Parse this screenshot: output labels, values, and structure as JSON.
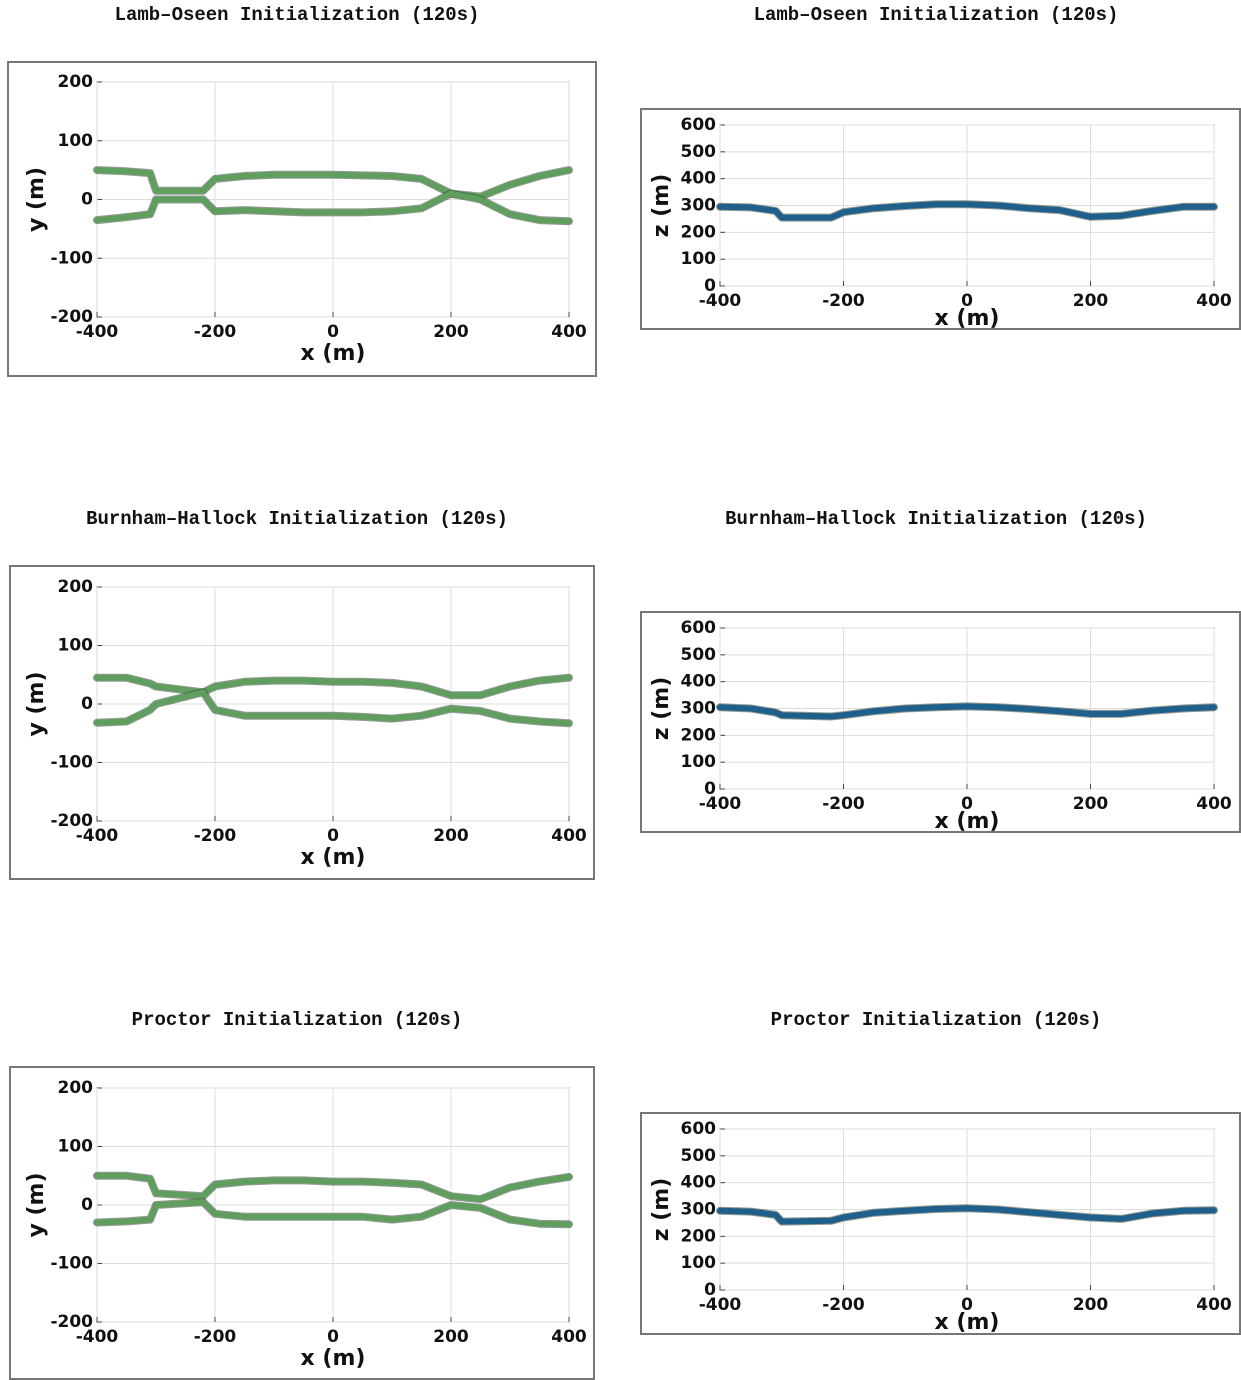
{
  "chart_data": [
    {
      "type": "line",
      "title": "Lamb–Oseen Initialization (120s)",
      "x_label": "x (m)",
      "y_label": "y (m)",
      "x": [
        -400,
        -350,
        -310,
        -300,
        -220,
        -200,
        -150,
        -100,
        -50,
        0,
        50,
        100,
        150,
        200,
        250,
        300,
        350,
        400
      ],
      "xlim": [
        -400,
        400
      ],
      "ylim": [
        -200,
        200
      ],
      "xticks": [
        -400,
        -200,
        0,
        200,
        400
      ],
      "yticks": [
        -200,
        -100,
        0,
        100,
        200
      ],
      "grid": true,
      "series": [
        {
          "color": "#5f9e5f",
          "values": [
            50,
            48,
            45,
            15,
            15,
            35,
            40,
            42,
            42,
            42,
            41,
            40,
            35,
            10,
            5,
            25,
            40,
            50
          ]
        },
        {
          "color": "#5f9e5f",
          "values": [
            -35,
            -30,
            -25,
            0,
            0,
            -20,
            -18,
            -20,
            -22,
            -22,
            -22,
            -20,
            -15,
            10,
            0,
            -25,
            -35,
            -37
          ]
        }
      ]
    },
    {
      "type": "line",
      "title": "Lamb–Oseen Initialization (120s)",
      "x_label": "x (m)",
      "y_label": "z (m)",
      "x": [
        -400,
        -350,
        -310,
        -300,
        -220,
        -200,
        -150,
        -100,
        -50,
        0,
        50,
        100,
        150,
        200,
        250,
        300,
        350,
        400
      ],
      "xlim": [
        -400,
        400
      ],
      "ylim": [
        0,
        600
      ],
      "xticks": [
        -400,
        -200,
        0,
        200,
        400
      ],
      "yticks": [
        0,
        100,
        200,
        300,
        400,
        500,
        600
      ],
      "grid": true,
      "series": [
        {
          "color": "#1f5f8b",
          "values": [
            295,
            293,
            280,
            255,
            255,
            275,
            290,
            298,
            305,
            305,
            300,
            290,
            283,
            258,
            262,
            280,
            295,
            295
          ]
        }
      ]
    },
    {
      "type": "line",
      "title": "Burnham–Hallock Initialization (120s)",
      "x_label": "x (m)",
      "y_label": "y (m)",
      "x": [
        -400,
        -350,
        -310,
        -300,
        -220,
        -200,
        -150,
        -100,
        -50,
        0,
        50,
        100,
        150,
        200,
        250,
        300,
        350,
        400
      ],
      "xlim": [
        -400,
        400
      ],
      "ylim": [
        -200,
        200
      ],
      "xticks": [
        -400,
        -200,
        0,
        200,
        400
      ],
      "yticks": [
        -200,
        -100,
        0,
        100,
        200
      ],
      "grid": true,
      "series": [
        {
          "color": "#5f9e5f",
          "values": [
            45,
            45,
            35,
            30,
            20,
            30,
            38,
            40,
            40,
            38,
            38,
            36,
            30,
            15,
            15,
            30,
            40,
            45
          ]
        },
        {
          "color": "#5f9e5f",
          "values": [
            -32,
            -30,
            -10,
            0,
            20,
            -10,
            -20,
            -20,
            -20,
            -20,
            -22,
            -25,
            -20,
            -8,
            -12,
            -25,
            -30,
            -33
          ]
        }
      ]
    },
    {
      "type": "line",
      "title": "Burnham–Hallock Initialization (120s)",
      "x_label": "x (m)",
      "y_label": "z (m)",
      "x": [
        -400,
        -350,
        -310,
        -300,
        -220,
        -200,
        -150,
        -100,
        -50,
        0,
        50,
        100,
        150,
        200,
        250,
        300,
        350,
        400
      ],
      "xlim": [
        -400,
        400
      ],
      "ylim": [
        0,
        600
      ],
      "xticks": [
        -400,
        -200,
        0,
        200,
        400
      ],
      "yticks": [
        0,
        100,
        200,
        300,
        400,
        500,
        600
      ],
      "grid": true,
      "series": [
        {
          "color": "#1f5f8b",
          "values": [
            305,
            300,
            285,
            275,
            270,
            275,
            290,
            300,
            305,
            308,
            305,
            298,
            290,
            280,
            280,
            292,
            300,
            305
          ]
        }
      ]
    },
    {
      "type": "line",
      "title": "Proctor Initialization (120s)",
      "x_label": "x (m)",
      "y_label": "y (m)",
      "x": [
        -400,
        -350,
        -310,
        -300,
        -220,
        -200,
        -150,
        -100,
        -50,
        0,
        50,
        100,
        150,
        200,
        250,
        300,
        350,
        400
      ],
      "xlim": [
        -400,
        400
      ],
      "ylim": [
        -200,
        200
      ],
      "xticks": [
        -400,
        -200,
        0,
        200,
        400
      ],
      "yticks": [
        -200,
        -100,
        0,
        100,
        200
      ],
      "grid": true,
      "series": [
        {
          "color": "#5f9e5f",
          "values": [
            50,
            50,
            45,
            20,
            15,
            35,
            40,
            42,
            42,
            40,
            40,
            38,
            35,
            15,
            10,
            30,
            40,
            48
          ]
        },
        {
          "color": "#5f9e5f",
          "values": [
            -30,
            -28,
            -25,
            0,
            5,
            -15,
            -20,
            -20,
            -20,
            -20,
            -20,
            -25,
            -20,
            0,
            -5,
            -25,
            -32,
            -33
          ]
        }
      ]
    },
    {
      "type": "line",
      "title": "Proctor Initialization (120s)",
      "x_label": "x (m)",
      "y_label": "z (m)",
      "x": [
        -400,
        -350,
        -310,
        -300,
        -220,
        -200,
        -150,
        -100,
        -50,
        0,
        50,
        100,
        150,
        200,
        250,
        300,
        350,
        400
      ],
      "xlim": [
        -400,
        400
      ],
      "ylim": [
        0,
        600
      ],
      "xticks": [
        -400,
        -200,
        0,
        200,
        400
      ],
      "yticks": [
        0,
        100,
        200,
        300,
        400,
        500,
        600
      ],
      "grid": true,
      "series": [
        {
          "color": "#1f5f8b",
          "values": [
            295,
            292,
            280,
            255,
            258,
            270,
            288,
            295,
            302,
            305,
            300,
            290,
            280,
            270,
            265,
            285,
            295,
            297
          ]
        }
      ]
    }
  ]
}
